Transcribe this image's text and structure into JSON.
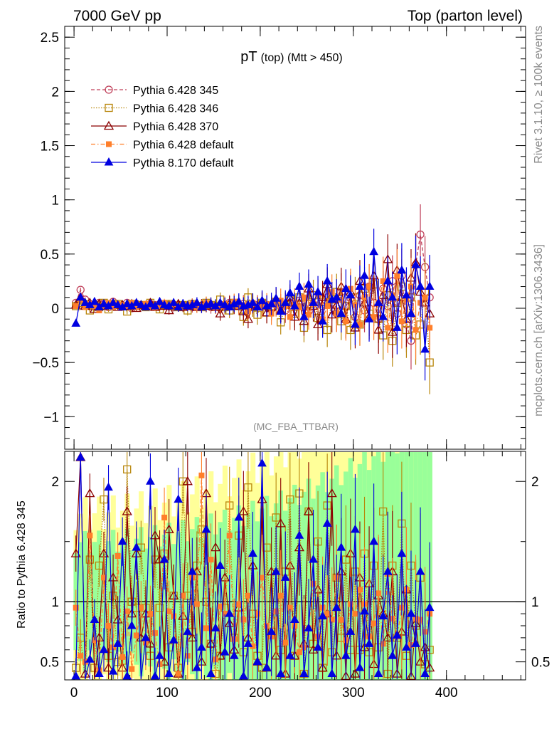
{
  "header": {
    "left": "7000 GeV pp",
    "right": "Top (parton level)"
  },
  "side_labels": {
    "rivet": "Rivet 3.1.10, ≥ 100k events",
    "mcplots": "mcplots.cern.ch [arXiv:1306.3436]"
  },
  "chart_data": [
    {
      "type": "line",
      "title_main": "pT",
      "title_sub": "(top) (Mtt > 450)",
      "watermark": "(MC_FBA_TTBAR)",
      "ylim": [
        -1.3,
        2.6
      ],
      "yticks": [
        -1,
        -0.5,
        0,
        0.5,
        1,
        1.5,
        2,
        2.5
      ],
      "ytick_labels": [
        "−1",
        "−0.5",
        "0",
        "0.5",
        "1",
        "1.5",
        "2",
        "2.5"
      ],
      "legend_position": "top-left",
      "colors": {
        "s345": "#c0405a",
        "s346": "#b8860b",
        "s370": "#8b0000",
        "s6def": "#ff7f2a",
        "s8def": "#0000e0"
      },
      "series": [
        {
          "name": "Pythia 6.428 345",
          "marker": "open-circle",
          "style": "dashed"
        },
        {
          "name": "Pythia 6.428 346",
          "marker": "open-square",
          "style": "dotted"
        },
        {
          "name": "Pythia 6.428 370",
          "marker": "open-triangle",
          "style": "solid"
        },
        {
          "name": "Pythia 6.428 default",
          "marker": "filled-square",
          "style": "dashdot"
        },
        {
          "name": "Pythia 8.170 default",
          "marker": "filled-triangle",
          "style": "solid"
        }
      ],
      "x_start": 2,
      "x_step": 5,
      "values": {
        "s345": [
          0.05,
          0.17,
          0.08,
          0.02,
          0.03,
          0.05,
          0.04,
          0.01,
          0.06,
          0.03,
          0.02,
          0.05,
          0.0,
          0.04,
          0.03,
          0.02,
          0.04,
          0.03,
          0.02,
          0.04,
          0.03,
          0.01,
          0.02,
          0.03,
          0.02,
          0.01,
          0.03,
          0.02,
          0.04,
          0.01,
          0.02,
          0.03,
          0.02,
          0.05,
          0.03,
          0.02,
          0.04,
          0.0,
          0.01,
          0.03,
          0.05,
          0.02,
          -0.01,
          0.04,
          0.02,
          -0.02,
          0.05,
          0.03,
          0.07,
          0.01,
          -0.03,
          0.04,
          0.06,
          0.02,
          0.1,
          0.05,
          -0.05,
          0.15,
          0.02,
          0.09,
          -0.08,
          0.12,
          -0.02,
          0.2,
          0.05,
          -0.1,
          0.18,
          0.02,
          0.25,
          -0.05,
          0.3,
          -0.15,
          -0.3,
          0.4,
          0.68,
          0.38,
          0.1
        ],
        "s346": [
          0.02,
          0.05,
          0.04,
          -0.02,
          0.03,
          0.01,
          0.05,
          -0.01,
          0.03,
          0.04,
          0.02,
          -0.03,
          0.04,
          0.02,
          0.03,
          0.01,
          0.05,
          0.02,
          -0.01,
          0.03,
          0.04,
          0.02,
          0.01,
          0.03,
          -0.02,
          0.04,
          0.02,
          0.01,
          0.05,
          0.03,
          0.02,
          0.08,
          0.01,
          -0.02,
          0.05,
          0.02,
          -0.08,
          0.1,
          0.01,
          -0.06,
          0.05,
          -0.04,
          0.02,
          0.06,
          -0.13,
          0.03,
          0.08,
          -0.05,
          0.1,
          -0.18,
          0.04,
          0.12,
          -0.09,
          0.06,
          -0.2,
          0.08,
          0.15,
          -0.12,
          0.02,
          -0.2,
          0.1,
          -0.15,
          0.18,
          -0.05,
          0.22,
          -0.1,
          -0.25,
          0.12,
          -0.3,
          0.05,
          0.2,
          -0.2,
          0.1,
          -0.25,
          -0.15,
          0.15,
          -0.5
        ],
        "s370": [
          0.03,
          0.1,
          0.02,
          0.05,
          -0.01,
          0.04,
          0.02,
          0.03,
          0.05,
          0.01,
          0.03,
          0.02,
          0.04,
          0.0,
          0.03,
          0.02,
          0.05,
          0.01,
          0.04,
          0.02,
          -0.02,
          0.03,
          0.04,
          0.01,
          0.02,
          0.04,
          0.01,
          0.03,
          0.02,
          0.04,
          0.01,
          -0.05,
          0.03,
          0.04,
          0.02,
          0.05,
          -0.03,
          -0.1,
          0.04,
          0.02,
          0.06,
          -0.04,
          0.01,
          0.08,
          -0.02,
          0.03,
          0.1,
          -0.08,
          0.05,
          -0.12,
          0.18,
          0.02,
          -0.15,
          0.1,
          0.22,
          -0.06,
          0.03,
          0.2,
          -0.1,
          0.15,
          -0.18,
          0.25,
          0.05,
          -0.08,
          0.3,
          -0.2,
          0.12,
          0.45,
          -0.22,
          0.35,
          0.1,
          -0.1,
          0.28,
          0.42,
          0.15,
          0.05,
          -0.05
        ],
        "s6def": [
          0.02,
          0.08,
          0.01,
          0.04,
          0.02,
          -0.02,
          0.03,
          0.05,
          0.01,
          0.04,
          0.03,
          0.02,
          0.05,
          0.01,
          0.03,
          0.04,
          0.02,
          0.01,
          0.03,
          0.05,
          0.02,
          0.04,
          0.01,
          0.03,
          0.02,
          0.04,
          0.01,
          0.02,
          0.05,
          0.03,
          0.01,
          0.02,
          0.04,
          0.01,
          0.06,
          0.02,
          0.03,
          -0.03,
          0.05,
          0.02,
          0.01,
          0.04,
          -0.05,
          0.03,
          0.07,
          0.02,
          -0.08,
          0.06,
          0.01,
          0.1,
          -0.06,
          0.04,
          0.12,
          -0.1,
          0.02,
          0.15,
          -0.05,
          0.08,
          -0.12,
          0.18,
          0.03,
          -0.15,
          0.1,
          0.2,
          -0.08,
          0.05,
          0.25,
          -0.18,
          0.12,
          0.3,
          -0.12,
          0.08,
          0.2,
          -0.2,
          0.05,
          0.1,
          -0.18
        ],
        "s8def": [
          -0.14,
          0.1,
          0.05,
          0.03,
          0.06,
          0.01,
          0.04,
          0.02,
          0.05,
          0.03,
          0.01,
          0.04,
          0.02,
          0.05,
          0.03,
          0.01,
          0.04,
          0.02,
          0.06,
          0.03,
          0.02,
          0.05,
          0.01,
          0.04,
          0.02,
          0.03,
          0.05,
          0.01,
          0.03,
          0.04,
          0.02,
          0.05,
          0.03,
          0.01,
          0.04,
          0.06,
          0.02,
          0.03,
          0.05,
          0.01,
          0.07,
          0.02,
          0.04,
          0.09,
          -0.03,
          0.05,
          0.14,
          0.02,
          0.2,
          -0.08,
          0.22,
          0.05,
          0.15,
          -0.12,
          0.25,
          0.08,
          0.1,
          -0.05,
          0.18,
          0.12,
          -0.15,
          0.2,
          0.3,
          -0.1,
          0.52,
          0.05,
          -0.08,
          0.25,
          0.1,
          -0.18,
          0.35,
          0.12,
          -0.05,
          0.4,
          0.2,
          -0.38,
          0.2
        ]
      }
    },
    {
      "type": "line",
      "ylabel": "Ratio to Pythia 6.428 345",
      "ylim": [
        0.35,
        2.25
      ],
      "yticks": [
        0.5,
        1,
        2
      ],
      "ytick_labels": [
        "0.5",
        "1",
        "2"
      ],
      "xlim": [
        -10,
        485
      ],
      "xticks": [
        0,
        100,
        200,
        300,
        400
      ],
      "xtick_labels": [
        "0",
        "100",
        "200",
        "300",
        "400"
      ],
      "band_colors": {
        "inner": "#99ff99",
        "outer": "#ffff99"
      },
      "ratios": {
        "s346": [
          0.45,
          0.7,
          0.35,
          1.35,
          0.45,
          1.3,
          1.85,
          0.55,
          1.05,
          0.5,
          0.51,
          2.1,
          1.0,
          0.95,
          1.45,
          0.95,
          0.55,
          1.35,
          0.95,
          1.4,
          0.62,
          1.05,
          0.45,
          2.0,
          1.05,
          0.75,
          1.3,
          1.6,
          1.0,
          0.65,
          0.4,
          0.55,
          0.95,
          1.8,
          0.7,
          1.55,
          0.58,
          1.95,
          0.9,
          0.55,
          0.45,
          1.45,
          0.75,
          1.7,
          0.6,
          1.25,
          1.85,
          0.55,
          1.9,
          0.4,
          1.75,
          0.65,
          1.5,
          0.45,
          1.8,
          0.58,
          1.2,
          0.7,
          1.35,
          0.6,
          1.25,
          0.6,
          1.4,
          0.58,
          1.3,
          0.62,
          1.75,
          0.4,
          1.3,
          0.7,
          1.65,
          0.55,
          1.3,
          0.8,
          1.2,
          0.48,
          0.6
        ],
        "s370": [
          1.4,
          2.2,
          0.4,
          1.9,
          0.35,
          0.7,
          1.4,
          0.45,
          1.2,
          0.85,
          0.45,
          1.75,
          0.9,
          1.4,
          0.7,
          0.9,
          0.65,
          1.55,
          1.35,
          0.5,
          1.6,
          1.05,
          0.4,
          0.88,
          2.0,
          0.7,
          1.25,
          0.5,
          1.9,
          0.65,
          1.45,
          0.55,
          1.2,
          0.82,
          0.6,
          0.95,
          1.75,
          0.7,
          1.3,
          0.5,
          1.85,
          0.45,
          1.25,
          0.55,
          1.65,
          0.4,
          1.3,
          0.55,
          1.45,
          0.65,
          1.75,
          0.6,
          1.1,
          0.45,
          0.9,
          1.9,
          0.55,
          1.25,
          0.38,
          1.4,
          0.4,
          1.2,
          0.62,
          1.15,
          0.48,
          1.05,
          0.9,
          0.7,
          1.25,
          0.4,
          0.75,
          1.1,
          0.38,
          0.82,
          0.5,
          0.62,
          0.45
        ],
        "s6def": [
          0.95,
          0.55,
          0.5,
          1.55,
          0.68,
          0.43,
          1.2,
          0.8,
          0.62,
          1.38,
          0.54,
          0.92,
          0.44,
          0.72,
          0.95,
          0.66,
          0.9,
          0.74,
          0.48,
          1.7,
          0.92,
          0.88,
          0.4,
          1.05,
          0.55,
          1.2,
          0.98,
          2.05,
          0.78,
          1.35,
          0.52,
          0.96,
          0.9,
          1.55,
          0.69,
          0.98,
          0.85,
          1.05,
          0.63,
          0.9,
          1.2,
          0.8,
          0.71,
          0.92,
          1.05,
          0.66,
          0.95,
          0.8,
          0.58,
          0.62,
          0.78,
          1.15,
          0.71,
          0.95,
          0.9,
          0.85,
          1.2,
          0.85,
          0.68,
          0.98,
          0.9,
          1.1,
          0.98,
          0.71,
          0.82,
          1.07,
          0.65,
          1.23,
          0.86,
          0.71,
          0.95,
          1.1,
          0.64,
          0.86,
          0.85,
          0.75,
          0.9
        ],
        "s8def": [
          0.38,
          2.2,
          0.35,
          0.52,
          0.85,
          0.4,
          0.6,
          1.95,
          0.42,
          0.65,
          1.5,
          0.38,
          0.8,
          1.45,
          0.35,
          0.7,
          2.0,
          0.38,
          0.55,
          1.35,
          0.4,
          0.68,
          1.85,
          0.35,
          0.75,
          1.25,
          0.45,
          0.62,
          1.6,
          0.4,
          0.78,
          1.3,
          0.58,
          0.9,
          0.55,
          1.7,
          0.38,
          0.65,
          1.4,
          0.5,
          2.15,
          0.45,
          0.75,
          1.25,
          0.4,
          1.2,
          0.55,
          0.85,
          1.55,
          0.4,
          0.78,
          1.35,
          0.62,
          0.88,
          1.65,
          0.4,
          0.95,
          1.45,
          0.55,
          0.75,
          1.6,
          0.45,
          0.92,
          0.65,
          1.5,
          0.4,
          0.88,
          1.25,
          0.55,
          0.72,
          1.4,
          0.62,
          0.9,
          0.65,
          1.25,
          0.4,
          0.95
        ]
      }
    }
  ]
}
